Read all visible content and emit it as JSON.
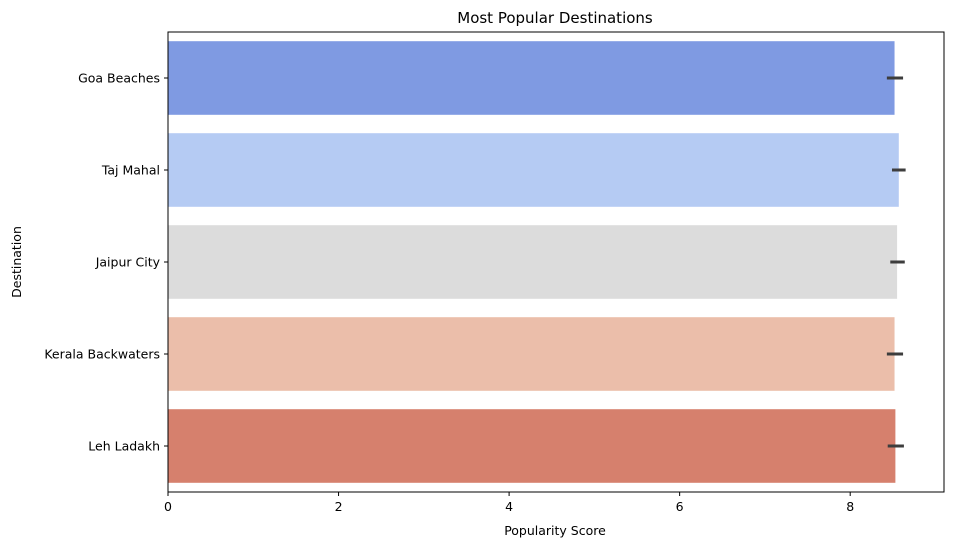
{
  "chart_data": {
    "type": "bar",
    "orientation": "horizontal",
    "title": "Most Popular Destinations",
    "xlabel": "Popularity Score",
    "ylabel": "Destination",
    "xlim": [
      0,
      9.1
    ],
    "xticks": [
      0,
      2,
      4,
      6,
      8
    ],
    "grid": false,
    "categories": [
      "Goa Beaches",
      "Taj Mahal",
      "Jaipur City",
      "Kerala Backwaters",
      "Leh Ladakh"
    ],
    "values": [
      8.52,
      8.57,
      8.55,
      8.52,
      8.53
    ],
    "error_bars": [
      {
        "low": 8.43,
        "high": 8.62
      },
      {
        "low": 8.49,
        "high": 8.65
      },
      {
        "low": 8.47,
        "high": 8.64
      },
      {
        "low": 8.43,
        "high": 8.62
      },
      {
        "low": 8.44,
        "high": 8.63
      }
    ],
    "colors": [
      "#7f9ae2",
      "#b5cbf3",
      "#dcdcdc",
      "#ebbeaa",
      "#d6806d"
    ],
    "error_color": "#3d3d3d"
  }
}
